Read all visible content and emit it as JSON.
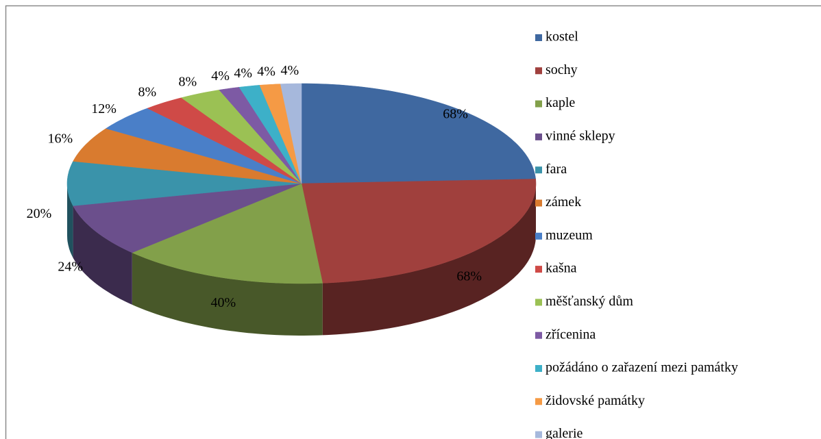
{
  "chart_data": {
    "type": "pie",
    "categories": [
      "kostel",
      "sochy",
      "kaple",
      "vinné sklepy",
      "fara",
      "zámek",
      "muzeum",
      "kašna",
      "měšťanský dům",
      "zřícenina",
      "požádáno o zařazení mezi památky",
      "židovské památky",
      "galerie"
    ],
    "values": [
      68,
      68,
      40,
      24,
      20,
      16,
      12,
      8,
      8,
      4,
      4,
      4,
      4
    ],
    "value_labels": [
      "68%",
      "68%",
      "40%",
      "24%",
      "20%",
      "16%",
      "12%",
      "8%",
      "8%",
      "4%",
      "4%",
      "4%",
      "4%"
    ],
    "colors": [
      "#3f68a0",
      "#a0403d",
      "#82a04a",
      "#6b4f8c",
      "#3a93aa",
      "#d97b2f",
      "#4a7fc8",
      "#cf4a47",
      "#9bc154",
      "#7d5aa4",
      "#3db0c8",
      "#f59a45",
      "#a6b8dc"
    ],
    "legend": "right"
  }
}
